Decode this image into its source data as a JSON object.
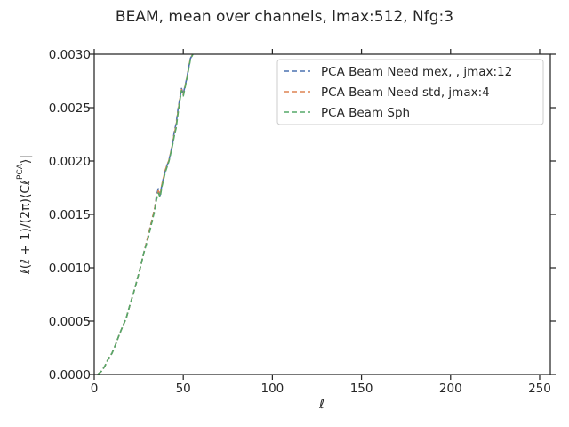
{
  "chart_data": {
    "type": "line",
    "title": "BEAM, mean over channels, lmax:512, Nfg:3",
    "xlabel": "ℓ",
    "ylabel": "ℓ(ℓ + 1)/(2π)⟨C_ℓ^PCA⟩|",
    "xlim": [
      0,
      256
    ],
    "ylim": [
      0,
      0.003
    ],
    "x_ticks": [
      0,
      50,
      100,
      150,
      200,
      250
    ],
    "x_tick_labels": [
      "0",
      "50",
      "100",
      "150",
      "200",
      "250"
    ],
    "y_ticks": [
      0,
      0.0005,
      0.001,
      0.0015,
      0.002,
      0.0025,
      0.003
    ],
    "y_tick_labels": [
      "0.0000",
      "0.0005",
      "0.0010",
      "0.0015",
      "0.0020",
      "0.0025",
      "0.0030"
    ],
    "grid": false,
    "legend_position": "top-right",
    "series": [
      {
        "name": "PCA Beam Need mex, , jmax:12",
        "color": "#4c72b0",
        "x": [
          2,
          4,
          6,
          8,
          10,
          12,
          14,
          16,
          18,
          20,
          22,
          24,
          26,
          28,
          30,
          32,
          34,
          35,
          36,
          37,
          38,
          40,
          42,
          44,
          45,
          46,
          47,
          48,
          49,
          50,
          52,
          54,
          56
        ],
        "y": [
          0.0,
          3e-05,
          8e-05,
          0.00015,
          0.0002,
          0.00028,
          0.00037,
          0.00045,
          0.00053,
          0.00065,
          0.00076,
          0.00088,
          0.00101,
          0.00115,
          0.00128,
          0.00142,
          0.00156,
          0.00168,
          0.00174,
          0.00168,
          0.00178,
          0.00192,
          0.00201,
          0.00216,
          0.00228,
          0.00235,
          0.00248,
          0.00258,
          0.00268,
          0.00263,
          0.00278,
          0.00296,
          0.00302
        ]
      },
      {
        "name": "PCA Beam Need std, jmax:4",
        "color": "#dd8452",
        "x": [
          2,
          4,
          6,
          8,
          10,
          12,
          14,
          16,
          18,
          20,
          22,
          24,
          26,
          28,
          30,
          32,
          34,
          35,
          36,
          37,
          38,
          40,
          42,
          44,
          45,
          46,
          47,
          48,
          49,
          50,
          52,
          54,
          56
        ],
        "y": [
          0.0,
          3e-05,
          8e-05,
          0.00015,
          0.0002,
          0.00028,
          0.00037,
          0.00045,
          0.00053,
          0.00065,
          0.00076,
          0.00088,
          0.00101,
          0.00115,
          0.00128,
          0.00142,
          0.00156,
          0.00166,
          0.00172,
          0.00168,
          0.00178,
          0.00192,
          0.00201,
          0.00216,
          0.00226,
          0.00233,
          0.00246,
          0.00257,
          0.00267,
          0.00262,
          0.00278,
          0.00296,
          0.00302
        ]
      },
      {
        "name": "PCA Beam Sph",
        "color": "#55a868",
        "x": [
          2,
          4,
          6,
          8,
          10,
          12,
          14,
          16,
          18,
          20,
          22,
          24,
          26,
          28,
          30,
          32,
          34,
          35,
          36,
          37,
          38,
          40,
          42,
          44,
          45,
          46,
          47,
          48,
          49,
          50,
          52,
          54,
          56
        ],
        "y": [
          0.0,
          3e-05,
          8e-05,
          0.00015,
          0.0002,
          0.00028,
          0.00037,
          0.00045,
          0.00053,
          0.00065,
          0.00076,
          0.00088,
          0.00101,
          0.00115,
          0.00126,
          0.0014,
          0.00154,
          0.00164,
          0.0017,
          0.00166,
          0.00176,
          0.0019,
          0.002,
          0.00215,
          0.00224,
          0.00231,
          0.00244,
          0.00256,
          0.00266,
          0.00261,
          0.00277,
          0.00295,
          0.00302
        ]
      }
    ]
  }
}
